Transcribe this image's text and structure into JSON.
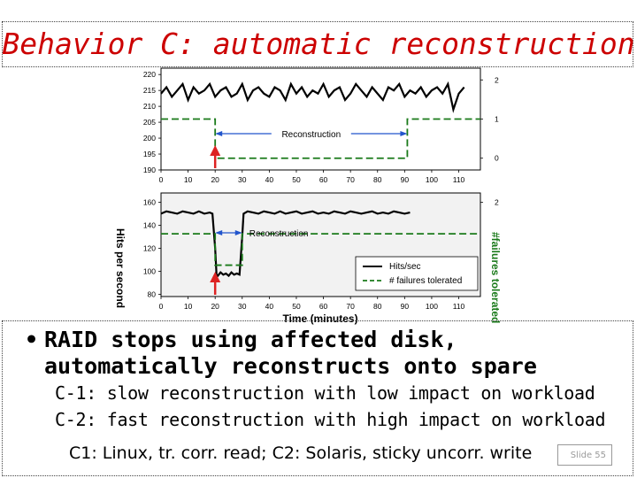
{
  "slide": {
    "title": "Behavior C: automatic reconstruction",
    "bullet": "RAID stops using affected disk, automatically reconstructs onto spare",
    "sub_items": [
      "C-1: slow reconstruction with low impact on workload",
      "C-2: fast reconstruction with high impact on workload"
    ],
    "note": "C1: Linux, tr. corr. read;   C2: Solaris, sticky uncorr. write",
    "slide_number": "Slide 55"
  },
  "colors": {
    "title": "#cc0000",
    "hits_line": "#000000",
    "failures_line": "#1a7a1a",
    "arrow_red": "#dd2222",
    "arrow_blue": "#2255cc"
  },
  "chart_data": [
    {
      "type": "line",
      "x_ticks": [
        "0",
        "10",
        "20",
        "30",
        "40",
        "50",
        "60",
        "70",
        "80",
        "90",
        "100",
        "110"
      ],
      "y_ticks": [
        "190",
        "195",
        "200",
        "205",
        "210",
        "215",
        "220"
      ],
      "y2_ticks": [
        "0",
        "1",
        "2"
      ],
      "xlim": [
        0,
        118
      ],
      "ylim": [
        190,
        222
      ],
      "y2lim": [
        -0.3,
        2.3
      ],
      "annotation": "Reconstruction",
      "reconstruction_span": [
        20,
        91
      ],
      "series": [
        {
          "role": "hits",
          "x": [
            0,
            2,
            4,
            6,
            8,
            10,
            12,
            14,
            16,
            18,
            20,
            22,
            24,
            26,
            28,
            30,
            32,
            34,
            36,
            38,
            40,
            42,
            44,
            46,
            48,
            50,
            52,
            54,
            56,
            58,
            60,
            62,
            64,
            66,
            68,
            70,
            72,
            74,
            76,
            78,
            80,
            82,
            84,
            86,
            88,
            90,
            92,
            94,
            96,
            98,
            100,
            102,
            104,
            106,
            108,
            110,
            112
          ],
          "values": [
            214,
            216,
            213,
            215,
            217,
            212,
            216,
            214,
            215,
            217,
            213,
            215,
            216,
            213,
            214,
            217,
            212,
            215,
            216,
            214,
            213,
            216,
            215,
            212,
            217,
            214,
            216,
            213,
            215,
            214,
            217,
            213,
            215,
            216,
            212,
            214,
            217,
            215,
            213,
            216,
            214,
            212,
            216,
            215,
            217,
            213,
            215,
            214,
            216,
            213,
            215,
            216,
            214,
            217,
            209,
            214,
            216
          ]
        },
        {
          "role": "failures",
          "x": [
            0,
            20,
            20,
            91,
            91,
            118
          ],
          "values": [
            1,
            1,
            0,
            0,
            1,
            1
          ]
        }
      ]
    },
    {
      "type": "line",
      "x_ticks": [
        "0",
        "10",
        "20",
        "30",
        "40",
        "50",
        "60",
        "70",
        "80",
        "90",
        "100",
        "110"
      ],
      "y_ticks": [
        "80",
        "100",
        "120",
        "140",
        "160"
      ],
      "y2_ticks": [
        "2"
      ],
      "xlim": [
        0,
        118
      ],
      "ylim": [
        78,
        168
      ],
      "y2lim": [
        -1,
        2.3
      ],
      "xlabel": "Time (minutes)",
      "ylabel": "Hits per second",
      "y2label": "#failures tolerated",
      "annotation": "Reconstruction",
      "reconstruction_span": [
        20,
        30
      ],
      "legend": {
        "entries": [
          "Hits/sec",
          "# failures tolerated"
        ],
        "position": "bottom-right"
      },
      "series": [
        {
          "role": "hits",
          "name": "Hits/sec",
          "x": [
            0,
            2,
            4,
            6,
            8,
            10,
            12,
            14,
            16,
            18,
            19,
            20,
            20.5,
            21,
            22,
            23,
            24,
            25,
            26,
            27,
            28,
            29,
            30,
            30.5,
            32,
            34,
            36,
            38,
            40,
            42,
            44,
            46,
            48,
            50,
            52,
            54,
            56,
            58,
            60,
            62,
            64,
            66,
            68,
            70,
            72,
            74,
            76,
            78,
            80,
            82,
            84,
            86,
            88,
            90,
            92
          ],
          "values": [
            150,
            152,
            151,
            150,
            152,
            151,
            150,
            152,
            150,
            151,
            150,
            120,
            97,
            96,
            99,
            97,
            98,
            96,
            99,
            97,
            98,
            97,
            130,
            150,
            152,
            151,
            150,
            152,
            151,
            150,
            152,
            150,
            151,
            152,
            150,
            151,
            152,
            150,
            151,
            150,
            152,
            151,
            150,
            152,
            151,
            150,
            151,
            152,
            150,
            151,
            150,
            152,
            151,
            150,
            151
          ]
        },
        {
          "role": "failures",
          "name": "# failures tolerated",
          "x": [
            0,
            20,
            20,
            30,
            30,
            118
          ],
          "values": [
            1,
            1,
            0,
            0,
            1,
            1
          ]
        }
      ]
    }
  ]
}
